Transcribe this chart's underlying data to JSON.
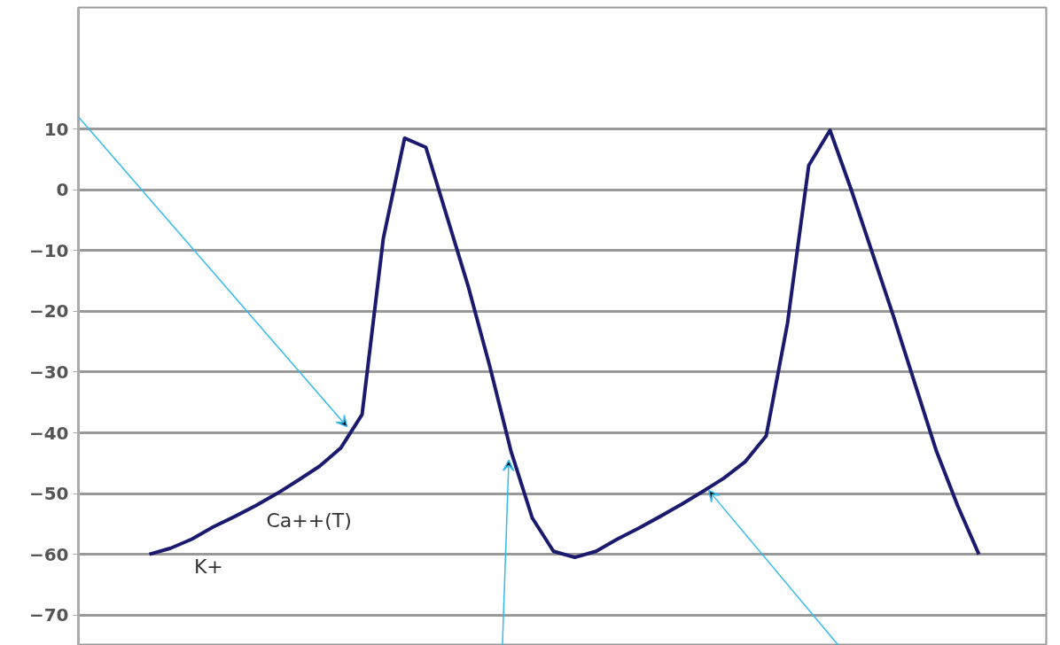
{
  "chart_data": {
    "type": "line",
    "categories": [
      null,
      null,
      null,
      null,
      null,
      null,
      null,
      null,
      null,
      null,
      null,
      null,
      null,
      null,
      null,
      null,
      null,
      null,
      null,
      null,
      null,
      null,
      null,
      null,
      null,
      null,
      null,
      null,
      null,
      null,
      null,
      null,
      null,
      null,
      null,
      null,
      null,
      null,
      null,
      null
    ],
    "series": [
      {
        "color": "#1a1a6e",
        "values": [
          -60,
          -59,
          -57.5,
          -55.5,
          -53.8,
          -52,
          -50,
          -47.8,
          -45.5,
          -42.5,
          -37,
          -8,
          8.5,
          7,
          -4.5,
          -16,
          -29,
          -43,
          -54,
          -59.5,
          -60.5,
          -59.5,
          -57.5,
          -55.7,
          -53.8,
          -51.8,
          -49.7,
          -47.5,
          -44.8,
          -40.5,
          -22,
          4,
          9.8,
          0,
          -10.5,
          -21,
          -32,
          -43,
          -52,
          -60
        ]
      }
    ],
    "ylim": [
      -75,
      30
    ],
    "yticks": [
      -70,
      -60,
      -50,
      -40,
      -30,
      -20,
      -10,
      0,
      10
    ],
    "grid": "y",
    "tick_labels": "y",
    "annotations": [
      "K+",
      "Ca++(T)"
    ]
  }
}
